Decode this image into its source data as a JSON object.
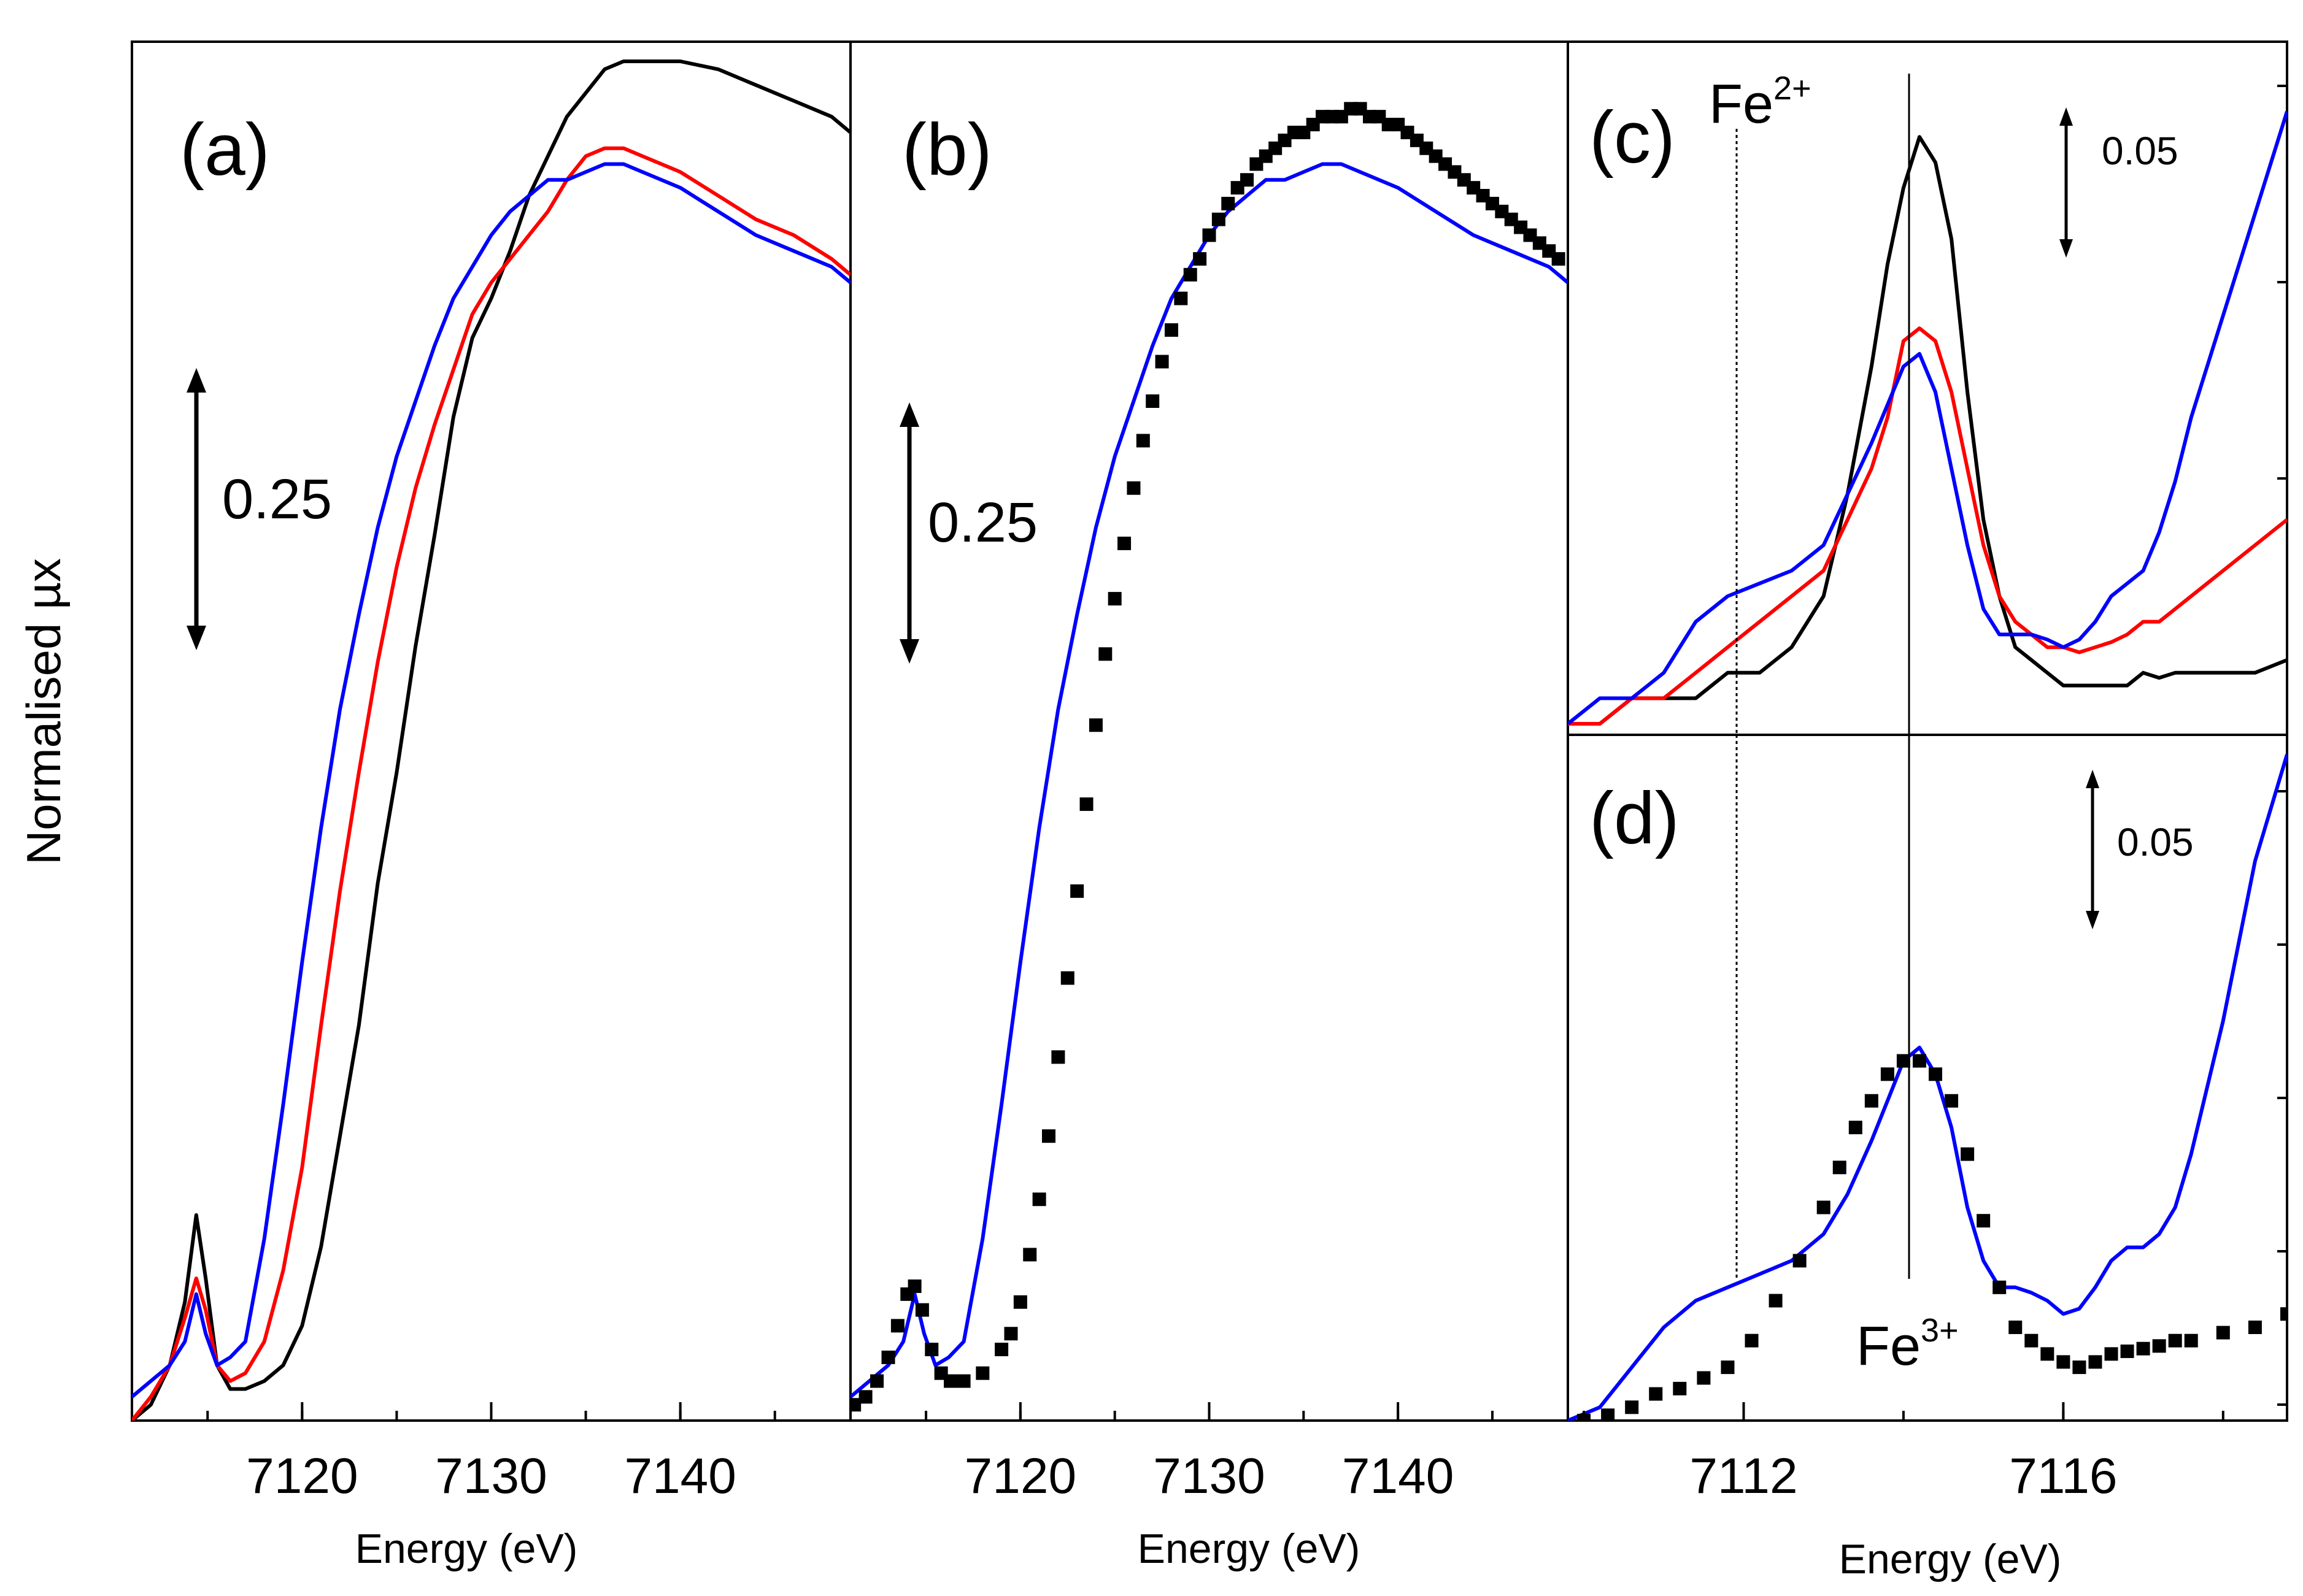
{
  "ylabel": "Normalised µx",
  "ion_labels": {
    "fe2": "Fe",
    "fe2_sup": "2+",
    "fe3": "Fe",
    "fe3_sup": "3+"
  },
  "colors": {
    "sample1": "#000000",
    "sample2": "#ff0000",
    "sample3": "#0000ff"
  },
  "chart_data": [
    {
      "id": "a",
      "type": "line",
      "label": "(a)",
      "xlabel": "Energy (eV)",
      "ylabel": "Normalised µx",
      "xlim": [
        7111,
        7149
      ],
      "ylim": [
        0,
        1.72
      ],
      "xticks": [
        7120,
        7130,
        7140
      ],
      "xtick_labels": [
        "7120",
        "7130",
        "7140"
      ],
      "scale_bar": {
        "label": "0.25",
        "value": 0.25
      },
      "series": [
        {
          "name": "black",
          "color": "#000000",
          "x": [
            7111,
            7112,
            7113,
            7113.8,
            7114.4,
            7114.9,
            7115.5,
            7116.2,
            7117,
            7118,
            7119,
            7120,
            7121,
            7122,
            7123,
            7124,
            7125,
            7126,
            7127,
            7128,
            7129,
            7130,
            7131,
            7132,
            7133,
            7134,
            7135,
            7136,
            7137,
            7138,
            7140,
            7142,
            7144,
            7146,
            7148,
            7149
          ],
          "y": [
            0.0,
            0.02,
            0.07,
            0.15,
            0.26,
            0.18,
            0.07,
            0.04,
            0.04,
            0.05,
            0.07,
            0.12,
            0.22,
            0.36,
            0.5,
            0.68,
            0.82,
            0.98,
            1.12,
            1.27,
            1.37,
            1.42,
            1.48,
            1.55,
            1.6,
            1.65,
            1.68,
            1.71,
            1.72,
            1.72,
            1.72,
            1.71,
            1.69,
            1.67,
            1.65,
            1.63
          ]
        },
        {
          "name": "red",
          "color": "#ff0000",
          "x": [
            7111,
            7112,
            7113,
            7113.8,
            7114.4,
            7114.9,
            7115.5,
            7116.2,
            7117,
            7118,
            7119,
            7120,
            7121,
            7122,
            7123,
            7124,
            7125,
            7126,
            7127,
            7128,
            7129,
            7130,
            7131,
            7132,
            7133,
            7134,
            7135,
            7136,
            7137,
            7138,
            7140,
            7142,
            7144,
            7146,
            7148,
            7149
          ],
          "y": [
            0.0,
            0.03,
            0.07,
            0.13,
            0.18,
            0.14,
            0.07,
            0.05,
            0.06,
            0.1,
            0.19,
            0.32,
            0.5,
            0.67,
            0.82,
            0.96,
            1.08,
            1.18,
            1.26,
            1.33,
            1.4,
            1.44,
            1.47,
            1.5,
            1.53,
            1.57,
            1.6,
            1.61,
            1.61,
            1.6,
            1.58,
            1.55,
            1.52,
            1.5,
            1.47,
            1.45
          ]
        },
        {
          "name": "blue",
          "color": "#0000ff",
          "x": [
            7111,
            7112,
            7113,
            7113.8,
            7114.4,
            7114.9,
            7115.5,
            7116.2,
            7117,
            7118,
            7119,
            7120,
            7121,
            7122,
            7123,
            7124,
            7125,
            7126,
            7127,
            7128,
            7129,
            7130,
            7131,
            7132,
            7133,
            7134,
            7135,
            7136,
            7137,
            7138,
            7140,
            7142,
            7144,
            7146,
            7148,
            7149
          ],
          "y": [
            0.03,
            0.05,
            0.07,
            0.1,
            0.16,
            0.11,
            0.07,
            0.08,
            0.1,
            0.23,
            0.4,
            0.58,
            0.75,
            0.9,
            1.02,
            1.13,
            1.22,
            1.29,
            1.36,
            1.42,
            1.46,
            1.5,
            1.53,
            1.55,
            1.57,
            1.57,
            1.58,
            1.59,
            1.59,
            1.58,
            1.56,
            1.53,
            1.5,
            1.48,
            1.46,
            1.44
          ]
        }
      ]
    },
    {
      "id": "b",
      "type": "line",
      "label": "(b)",
      "xlabel": "Energy (eV)",
      "xlim": [
        7111,
        7149
      ],
      "ylim": [
        0,
        1.72
      ],
      "xticks": [
        7120,
        7130,
        7140
      ],
      "xtick_labels": [
        "7120",
        "7130",
        "7140"
      ],
      "scale_bar": {
        "label": "0.25",
        "value": 0.25
      },
      "series": [
        {
          "name": "blue",
          "color": "#0000ff",
          "x": [
            7111,
            7112,
            7113,
            7113.8,
            7114.4,
            7114.9,
            7115.5,
            7116.2,
            7117,
            7118,
            7119,
            7120,
            7121,
            7122,
            7123,
            7124,
            7125,
            7126,
            7127,
            7128,
            7129,
            7130,
            7131,
            7132,
            7133,
            7134,
            7135,
            7136,
            7137,
            7138,
            7140,
            7142,
            7144,
            7146,
            7148,
            7149
          ],
          "y": [
            0.03,
            0.05,
            0.07,
            0.1,
            0.16,
            0.11,
            0.07,
            0.08,
            0.1,
            0.23,
            0.4,
            0.58,
            0.75,
            0.9,
            1.02,
            1.13,
            1.22,
            1.29,
            1.36,
            1.42,
            1.46,
            1.5,
            1.53,
            1.55,
            1.57,
            1.57,
            1.58,
            1.59,
            1.59,
            1.58,
            1.56,
            1.53,
            1.5,
            1.48,
            1.46,
            1.44
          ]
        },
        {
          "name": "black-points",
          "color": "#000000",
          "marker": "square",
          "x": [
            7111.2,
            7111.8,
            7112.4,
            7113,
            7113.5,
            7114,
            7114.4,
            7114.8,
            7115.3,
            7115.8,
            7116.3,
            7117,
            7118,
            7119,
            7119.5,
            7120,
            7120.5,
            7121,
            7121.5,
            7122,
            7122.5,
            7123,
            7123.5,
            7124,
            7124.5,
            7125,
            7125.5,
            7126,
            7126.5,
            7127,
            7127.5,
            7128,
            7128.5,
            7129,
            7129.5,
            7130,
            7130.5,
            7131,
            7131.5,
            7132,
            7132.5,
            7133,
            7133.5,
            7134,
            7134.5,
            7135,
            7135.5,
            7136,
            7136.5,
            7137,
            7137.5,
            7138,
            7138.5,
            7139,
            7139.5,
            7140,
            7140.5,
            7141,
            7141.5,
            7142,
            7142.5,
            7143,
            7143.5,
            7144,
            7144.5,
            7145,
            7145.5,
            7146,
            7146.5,
            7147,
            7147.5,
            7148,
            7148.5
          ],
          "y": [
            0.02,
            0.03,
            0.05,
            0.08,
            0.12,
            0.16,
            0.17,
            0.14,
            0.09,
            0.06,
            0.05,
            0.05,
            0.06,
            0.09,
            0.11,
            0.15,
            0.21,
            0.28,
            0.36,
            0.46,
            0.56,
            0.67,
            0.78,
            0.88,
            0.97,
            1.04,
            1.11,
            1.18,
            1.24,
            1.29,
            1.34,
            1.38,
            1.42,
            1.45,
            1.47,
            1.5,
            1.52,
            1.54,
            1.56,
            1.57,
            1.59,
            1.6,
            1.61,
            1.62,
            1.63,
            1.63,
            1.64,
            1.65,
            1.65,
            1.65,
            1.66,
            1.66,
            1.65,
            1.65,
            1.64,
            1.64,
            1.63,
            1.62,
            1.61,
            1.6,
            1.59,
            1.58,
            1.57,
            1.56,
            1.55,
            1.54,
            1.53,
            1.52,
            1.51,
            1.5,
            1.49,
            1.48,
            1.47
          ]
        }
      ]
    },
    {
      "id": "c",
      "type": "line",
      "label": "(c)",
      "xlim": [
        7109.8,
        7118.8
      ],
      "ylim": [
        0,
        0.25
      ],
      "scale_bar": {
        "label": "0.05",
        "value": 0.05
      },
      "markers": {
        "fe2_x": 7112.0,
        "fe3_x": 7114.25
      },
      "series": [
        {
          "name": "black",
          "color": "#000000",
          "x": [
            7109.8,
            7110.2,
            7110.6,
            7111,
            7111.4,
            7111.8,
            7112.2,
            7112.6,
            7113,
            7113.3,
            7113.6,
            7113.8,
            7114,
            7114.2,
            7114.4,
            7114.6,
            7114.8,
            7115,
            7115.2,
            7115.4,
            7115.6,
            7115.8,
            7116,
            7116.2,
            7116.4,
            7116.6,
            7116.8,
            7117,
            7117.2,
            7117.4,
            7117.6,
            7118,
            7118.4,
            7118.8
          ],
          "y": [
            0.0,
            0.0,
            0.01,
            0.01,
            0.01,
            0.02,
            0.02,
            0.03,
            0.05,
            0.09,
            0.14,
            0.18,
            0.21,
            0.23,
            0.22,
            0.19,
            0.13,
            0.08,
            0.05,
            0.03,
            0.025,
            0.02,
            0.015,
            0.015,
            0.015,
            0.015,
            0.015,
            0.02,
            0.018,
            0.02,
            0.02,
            0.02,
            0.02,
            0.025
          ]
        },
        {
          "name": "red",
          "color": "#ff0000",
          "x": [
            7109.8,
            7110.2,
            7110.6,
            7111,
            7111.4,
            7111.8,
            7112.2,
            7112.6,
            7113,
            7113.3,
            7113.6,
            7113.8,
            7114,
            7114.2,
            7114.4,
            7114.6,
            7114.8,
            7115,
            7115.2,
            7115.4,
            7115.6,
            7115.8,
            7116,
            7116.2,
            7116.4,
            7116.6,
            7116.8,
            7117,
            7117.2,
            7117.4,
            7117.6,
            7118,
            7118.4,
            7118.8
          ],
          "y": [
            0.0,
            0.0,
            0.01,
            0.01,
            0.02,
            0.03,
            0.04,
            0.05,
            0.06,
            0.08,
            0.1,
            0.12,
            0.15,
            0.155,
            0.15,
            0.13,
            0.1,
            0.07,
            0.05,
            0.04,
            0.035,
            0.03,
            0.03,
            0.028,
            0.03,
            0.032,
            0.035,
            0.04,
            0.04,
            0.045,
            0.05,
            0.06,
            0.07,
            0.08
          ]
        },
        {
          "name": "blue",
          "color": "#0000ff",
          "x": [
            7109.8,
            7110.2,
            7110.6,
            7111,
            7111.4,
            7111.8,
            7112.2,
            7112.6,
            7113,
            7113.3,
            7113.6,
            7113.8,
            7114,
            7114.2,
            7114.4,
            7114.6,
            7114.8,
            7115,
            7115.2,
            7115.4,
            7115.6,
            7115.8,
            7116,
            7116.2,
            7116.4,
            7116.6,
            7116.8,
            7117,
            7117.2,
            7117.4,
            7117.6,
            7118,
            7118.4,
            7118.8
          ],
          "y": [
            0.0,
            0.01,
            0.01,
            0.02,
            0.04,
            0.05,
            0.055,
            0.06,
            0.07,
            0.09,
            0.11,
            0.125,
            0.14,
            0.145,
            0.13,
            0.1,
            0.07,
            0.045,
            0.035,
            0.035,
            0.035,
            0.033,
            0.03,
            0.033,
            0.04,
            0.05,
            0.055,
            0.06,
            0.075,
            0.095,
            0.12,
            0.16,
            0.2,
            0.24
          ]
        }
      ]
    },
    {
      "id": "d",
      "type": "line",
      "label": "(d)",
      "xlabel": "Energy (eV)",
      "xlim": [
        7109.8,
        7118.8
      ],
      "ylim": [
        0,
        0.25
      ],
      "xticks": [
        7112,
        7116
      ],
      "xtick_labels": [
        "7112",
        "7116"
      ],
      "scale_bar": {
        "label": "0.05",
        "value": 0.05
      },
      "series": [
        {
          "name": "blue",
          "color": "#0000ff",
          "x": [
            7109.8,
            7110.2,
            7110.6,
            7111,
            7111.4,
            7111.8,
            7112.2,
            7112.6,
            7113,
            7113.3,
            7113.6,
            7113.8,
            7114,
            7114.2,
            7114.4,
            7114.6,
            7114.8,
            7115,
            7115.2,
            7115.4,
            7115.6,
            7115.8,
            7116,
            7116.2,
            7116.4,
            7116.6,
            7116.8,
            7117,
            7117.2,
            7117.4,
            7117.6,
            7118,
            7118.4,
            7118.8
          ],
          "y": [
            0.0,
            0.005,
            0.02,
            0.035,
            0.045,
            0.05,
            0.055,
            0.06,
            0.07,
            0.085,
            0.105,
            0.12,
            0.135,
            0.14,
            0.13,
            0.11,
            0.08,
            0.06,
            0.05,
            0.05,
            0.048,
            0.045,
            0.04,
            0.042,
            0.05,
            0.06,
            0.065,
            0.065,
            0.07,
            0.08,
            0.1,
            0.15,
            0.21,
            0.25
          ]
        },
        {
          "name": "black-points",
          "color": "#000000",
          "marker": "square",
          "x": [
            7110,
            7110.3,
            7110.6,
            7110.9,
            7111.2,
            7111.5,
            7111.8,
            7112.1,
            7112.4,
            7112.7,
            7113,
            7113.2,
            7113.4,
            7113.6,
            7113.8,
            7114,
            7114.2,
            7114.4,
            7114.6,
            7114.8,
            7115,
            7115.2,
            7115.4,
            7115.6,
            7115.8,
            7116,
            7116.2,
            7116.4,
            7116.6,
            7116.8,
            7117,
            7117.2,
            7117.4,
            7117.6,
            7118,
            7118.4,
            7118.8
          ],
          "y": [
            0.0,
            0.002,
            0.005,
            0.01,
            0.012,
            0.016,
            0.02,
            0.03,
            0.045,
            0.06,
            0.08,
            0.095,
            0.11,
            0.12,
            0.13,
            0.135,
            0.135,
            0.13,
            0.12,
            0.1,
            0.075,
            0.05,
            0.035,
            0.03,
            0.025,
            0.022,
            0.02,
            0.022,
            0.025,
            0.026,
            0.027,
            0.028,
            0.03,
            0.03,
            0.033,
            0.035,
            0.04
          ]
        }
      ]
    }
  ]
}
